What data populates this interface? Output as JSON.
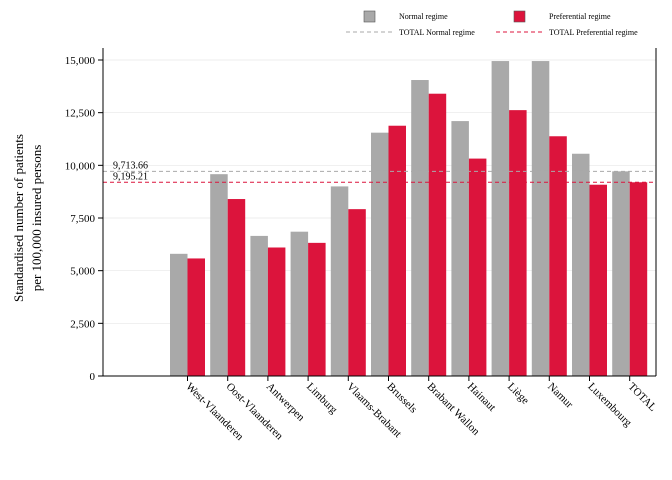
{
  "chart_data": {
    "type": "bar",
    "ylabel_line1": "Standardised number of patients",
    "ylabel_line2": "per 100,000 insured persons",
    "xlabel": "",
    "ylim": [
      0,
      15000
    ],
    "yticks": [
      0,
      2500,
      5000,
      7500,
      10000,
      12500,
      15000
    ],
    "ytick_labels": [
      "0",
      "2,500",
      "5,000",
      "7,500",
      "10,000",
      "12,500",
      "15,000"
    ],
    "categories": [
      "West-Vlaanderen",
      "Oost-Vlaanderen",
      "Antwerpen",
      "Limburg",
      "Vlaams-Brabant",
      "Brussels",
      "Brabant Wallon",
      "Hainaut",
      "Liège",
      "Namur",
      "Luxembourg",
      "TOTAL"
    ],
    "series": [
      {
        "name": "Normal regime",
        "color": "#a9a9a9",
        "values": [
          5800,
          9580,
          6650,
          6850,
          9000,
          11550,
          14050,
          12100,
          14950,
          14950,
          10550,
          9714
        ]
      },
      {
        "name": "Preferential regime",
        "color": "#dc143c",
        "values": [
          5580,
          8400,
          6100,
          6320,
          7920,
          11880,
          13400,
          10320,
          12620,
          11380,
          9080,
          9195
        ]
      }
    ],
    "reference_lines": [
      {
        "name": "TOTAL Normal regime",
        "value": 9713.66,
        "label": "9,713.66",
        "color": "#a9a9a9"
      },
      {
        "name": "TOTAL Preferential regime",
        "value": 9195.21,
        "label": "9,195.21",
        "color": "#dc143c"
      }
    ],
    "legend_position": "top",
    "grid": true
  }
}
